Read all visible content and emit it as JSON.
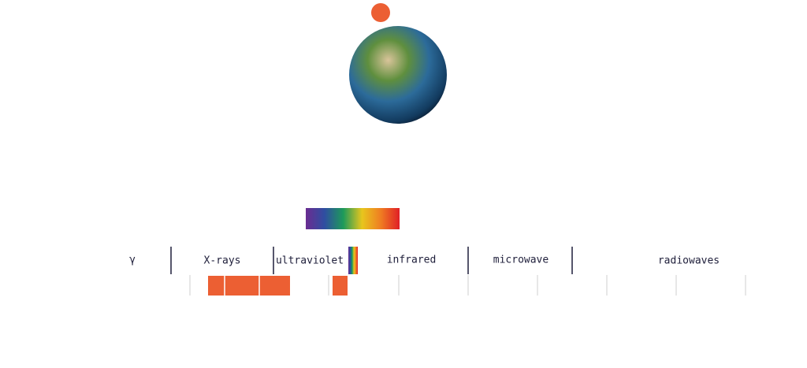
{
  "spectrum": {
    "bands": [
      {
        "label": "γ"
      },
      {
        "label": "X-rays"
      },
      {
        "label": "ultraviolet"
      },
      {
        "label": "infrared"
      },
      {
        "label": "microwave"
      },
      {
        "label": "radiowaves"
      }
    ]
  }
}
